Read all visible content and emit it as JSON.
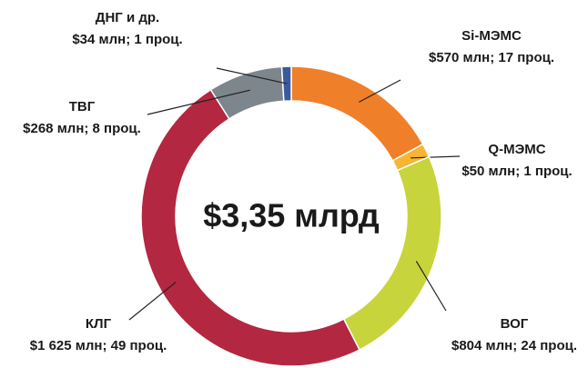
{
  "chart_data": {
    "type": "pie",
    "center_label": "$3,35 млрд",
    "categories": [
      "Si-МЭМС",
      "Q-МЭМС",
      "ВОГ",
      "КЛГ",
      "ТВГ",
      "ДНГ и др."
    ],
    "values": [
      570,
      50,
      804,
      1625,
      268,
      34
    ],
    "value_labels": [
      "$570 млн; 17 проц.",
      "$50 млн; 1 проц.",
      "$804 млн; 24 проц.",
      "$1 625 млн; 49 проц.",
      "$268 млн; 8 проц.",
      "$34 млн; 1 проц."
    ],
    "colors": [
      "#f07f2a",
      "#f6b532",
      "#c8d43c",
      "#b32741",
      "#7d858d",
      "#3b5a9e"
    ]
  }
}
